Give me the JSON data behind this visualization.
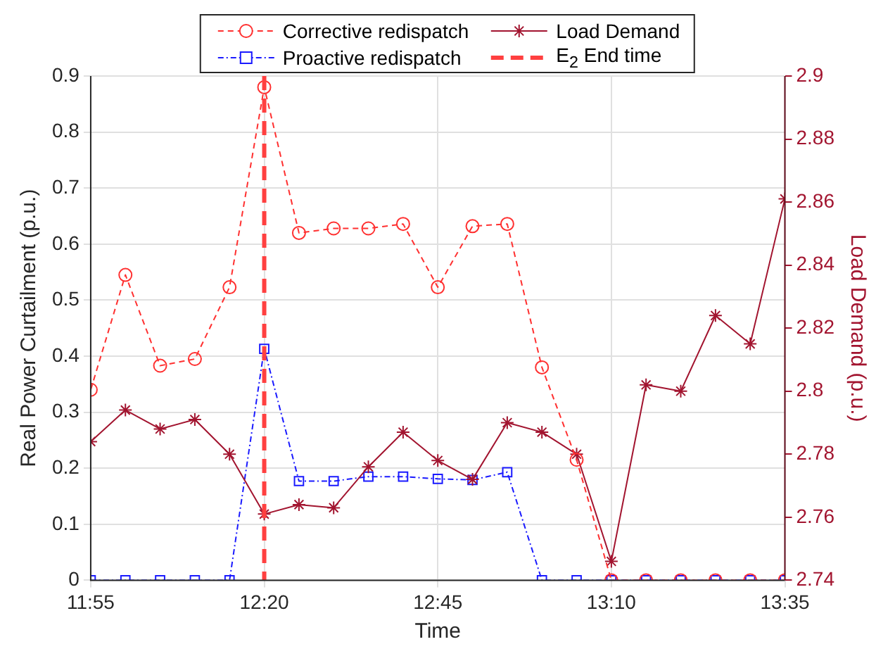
{
  "chart_data": {
    "type": "line",
    "xlabel": "Time",
    "ylabel": "Real Power Curtailment (p.u.)",
    "y2label": "Load Demand (p.u.)",
    "x": [
      11.9167,
      12.0,
      12.0833,
      12.1667,
      12.25,
      12.3333,
      12.4167,
      12.5,
      12.5833,
      12.6667,
      12.75,
      12.8333,
      12.9167,
      13.0,
      13.0833,
      13.1667,
      13.25,
      13.3333,
      13.4167,
      13.5,
      13.5833
    ],
    "series": [
      {
        "name": "Corrective redispatch",
        "color": "#ff3030",
        "marker": "circle",
        "line_style": "dashed",
        "values": [
          0.34,
          0.545,
          0.383,
          0.395,
          0.523,
          0.88,
          0.62,
          0.628,
          0.628,
          0.636,
          0.523,
          0.632,
          0.636,
          0.38,
          0.215,
          0,
          0,
          0,
          0,
          0,
          0
        ]
      },
      {
        "name": "Load Demand",
        "color": "#a2142f",
        "marker": "cross",
        "line_style": "solid",
        "axis": "y2",
        "values": [
          2.784,
          2.794,
          2.788,
          2.791,
          2.78,
          2.761,
          2.764,
          2.763,
          2.776,
          2.787,
          2.778,
          2.772,
          2.79,
          2.787,
          2.78,
          2.746,
          2.802,
          2.8,
          2.824,
          2.815,
          2.861
        ]
      },
      {
        "name": "Proactive redispatch",
        "color": "#1a1aff",
        "marker": "square",
        "line_style": "dotted",
        "values": [
          0,
          0,
          0,
          0,
          0,
          0.413,
          0.177,
          0.177,
          0.185,
          0.185,
          0.181,
          0.179,
          0.193,
          0,
          0,
          0,
          0,
          0,
          0,
          0,
          0
        ]
      }
    ],
    "ref_lines": [
      {
        "axis": "x",
        "value": 12.3333,
        "label": "E$_{2}$ End time",
        "color": "#ff4040",
        "line_style": "dashed"
      }
    ],
    "xlim": [
      11.9167,
      13.5833
    ],
    "xticks": [
      {
        "value": 11.9167,
        "label": "11:55"
      },
      {
        "value": 12.3333,
        "label": "12:20"
      },
      {
        "value": 12.75,
        "label": "12:45"
      },
      {
        "value": 13.1667,
        "label": "13:10"
      },
      {
        "value": 13.5833,
        "label": "13:35"
      }
    ],
    "ylim": [
      0,
      0.9
    ],
    "yticks": [
      0,
      0.1,
      0.2,
      0.3,
      0.4,
      0.5,
      0.6,
      0.7,
      0.8,
      0.9
    ],
    "y2lim": [
      2.74,
      2.9
    ],
    "y2ticks": [
      2.74,
      2.76,
      2.78,
      2.8,
      2.82,
      2.84,
      2.86,
      2.88,
      2.9
    ],
    "grid": true,
    "legend": "top"
  }
}
